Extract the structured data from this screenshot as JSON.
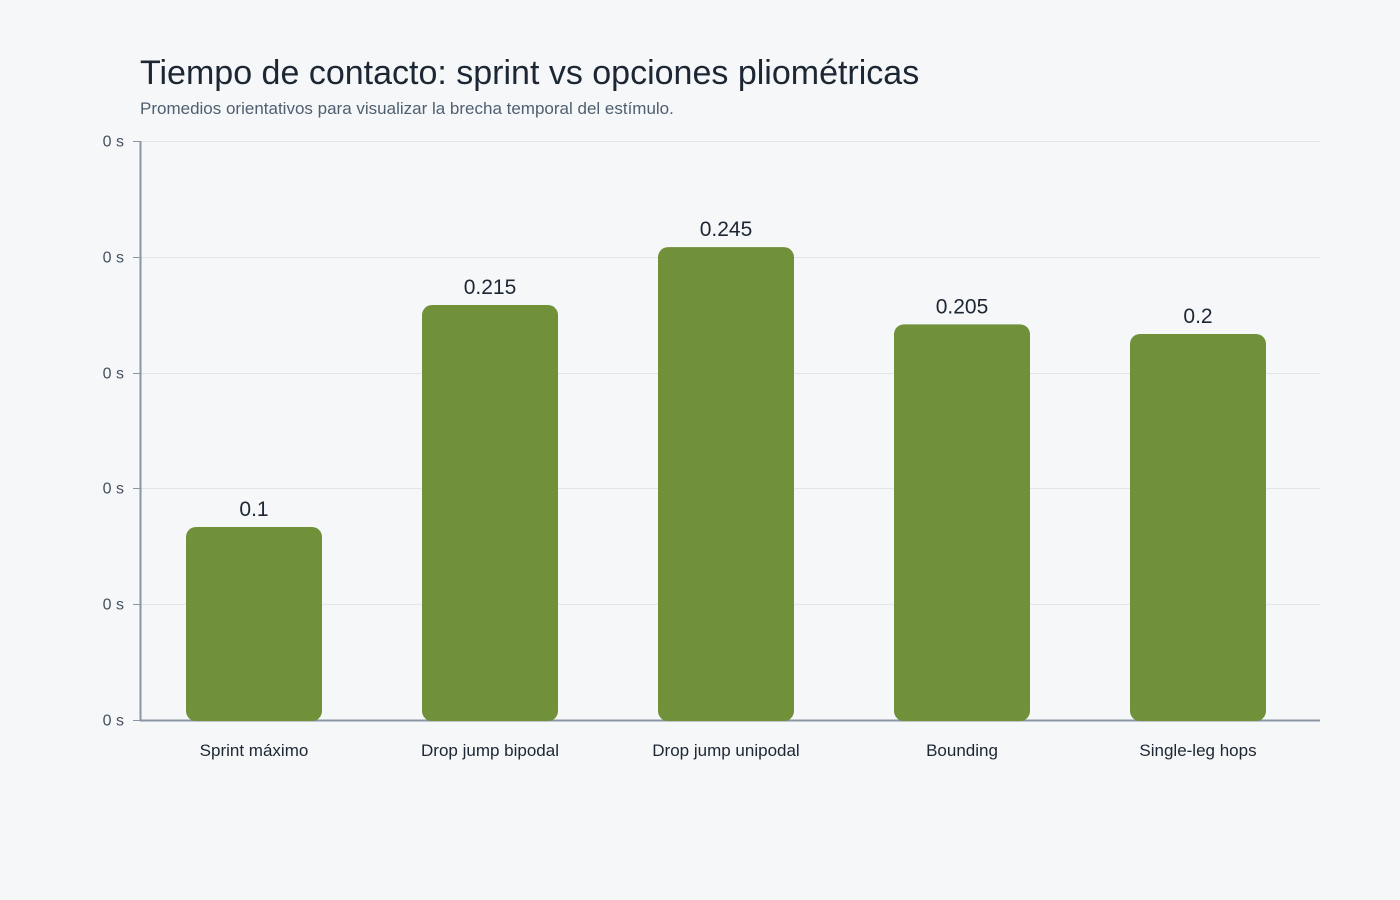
{
  "chart_data": {
    "type": "bar",
    "title": "Tiempo de contacto: sprint vs opciones pliométricas",
    "subtitle": "Promedios orientativos para visualizar la brecha temporal del estímulo.",
    "xlabel": "",
    "ylabel": "",
    "categories": [
      "Sprint máximo",
      "Drop jump bipodal",
      "Drop jump unipodal",
      "Bounding",
      "Single-leg hops"
    ],
    "values": [
      0.1,
      0.215,
      0.245,
      0.205,
      0.2
    ],
    "data_labels": [
      "0.1",
      "0.215",
      "0.245",
      "0.205",
      "0.2"
    ],
    "ylim": [
      0,
      0.3
    ],
    "y_ticks": [
      0,
      0.06,
      0.12,
      0.18,
      0.24,
      0.3
    ],
    "y_tick_labels": [
      "0 s",
      "0 s",
      "0 s",
      "0 s",
      "0 s",
      "0 s"
    ],
    "grid": true,
    "legend": "none",
    "bar_color": "#70903a",
    "grid_color": "#e1e5ea",
    "axis_color": "#8a96a3"
  }
}
